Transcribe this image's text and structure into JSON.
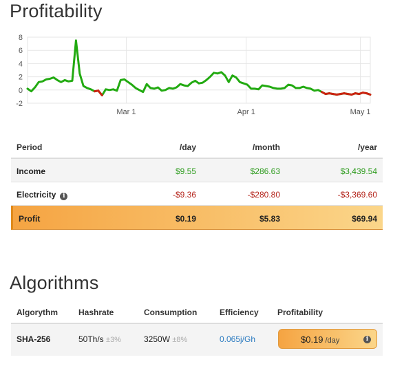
{
  "profitability_title": "Profitability",
  "algorithms_title": "Algorithms",
  "chart_data": {
    "type": "line",
    "x_ticks": [
      "Mar 1",
      "Apr 1",
      "May 1"
    ],
    "y_ticks": [
      "8",
      "6",
      "4",
      "2",
      "0",
      "-2"
    ],
    "ylim": [
      -2,
      8
    ],
    "grid": true,
    "colors": {
      "positive": "#22aa11",
      "negative": "#cc2211"
    },
    "series": [
      {
        "x": [
          0,
          1,
          2,
          3,
          4,
          5,
          6,
          7,
          8,
          9,
          10,
          11,
          12,
          13,
          14,
          15,
          16,
          17,
          18,
          19,
          20,
          21,
          22,
          23,
          24,
          25,
          26,
          27,
          28,
          29,
          30,
          31,
          32,
          33,
          34,
          35,
          36,
          37,
          38,
          39,
          40,
          41,
          42,
          43,
          44,
          45,
          46,
          47,
          48,
          49,
          50,
          51,
          52,
          53,
          54,
          55,
          56,
          57,
          58,
          59,
          60,
          61,
          62,
          63,
          64,
          65,
          66,
          67,
          68,
          69,
          70,
          71,
          72,
          73,
          74,
          75,
          76,
          77,
          78,
          79,
          80,
          81,
          82,
          83,
          84,
          85,
          86,
          87,
          88,
          89,
          90,
          91,
          92
        ],
        "y": [
          0.2,
          -0.2,
          0.4,
          1.2,
          1.3,
          1.6,
          1.7,
          1.9,
          1.5,
          1.2,
          1.5,
          1.3,
          1.4,
          7.5,
          2.5,
          0.6,
          0.3,
          0.1,
          -0.2,
          -0.1,
          -0.8,
          0.1,
          0.0,
          0.1,
          -0.1,
          1.5,
          1.6,
          1.2,
          0.8,
          0.3,
          0.0,
          -0.3,
          0.9,
          0.3,
          0.2,
          0.4,
          -0.1,
          0.0,
          0.3,
          0.2,
          0.4,
          0.9,
          0.7,
          0.6,
          1.1,
          1.4,
          1.0,
          1.1,
          1.5,
          2.0,
          2.6,
          2.5,
          2.7,
          2.2,
          1.2,
          2.2,
          1.9,
          1.2,
          1.0,
          0.8,
          0.2,
          0.2,
          0.1,
          0.7,
          0.6,
          0.5,
          0.3,
          0.2,
          0.2,
          0.3,
          0.8,
          0.7,
          0.3,
          0.3,
          0.5,
          0.3,
          0.2,
          -0.1,
          0.0,
          -0.3,
          -0.6,
          -0.5,
          -0.6,
          -0.7,
          -0.6,
          -0.5,
          -0.6,
          -0.7,
          -0.5,
          -0.6,
          -0.4,
          -0.5,
          -0.7
        ]
      }
    ]
  },
  "profit_table": {
    "headers": {
      "period": "Period",
      "day": "/day",
      "month": "/month",
      "year": "/year"
    },
    "income": {
      "label": "Income",
      "day": "$9.55",
      "month": "$286.63",
      "year": "$3,439.54"
    },
    "electricity": {
      "label": "Electricity",
      "day": "-$9.36",
      "month": "-$280.80",
      "year": "-$3,369.60"
    },
    "profit": {
      "label": "Profit",
      "day": "$0.19",
      "month": "$5.83",
      "year": "$69.94"
    }
  },
  "algo_table": {
    "headers": {
      "algorithm": "Algorythm",
      "hashrate": "Hashrate",
      "consumption": "Consumption",
      "efficiency": "Efficiency",
      "profitability": "Profitability"
    },
    "rows": [
      {
        "algorithm": "SHA-256",
        "hashrate": "50Th/s",
        "hashrate_tol": "±3%",
        "consumption": "3250W",
        "consumption_tol": "±8%",
        "efficiency": "0.065j/Gh",
        "profit_value": "$0.19",
        "profit_unit": "/day"
      }
    ]
  },
  "icons": {
    "info": "info-icon"
  }
}
